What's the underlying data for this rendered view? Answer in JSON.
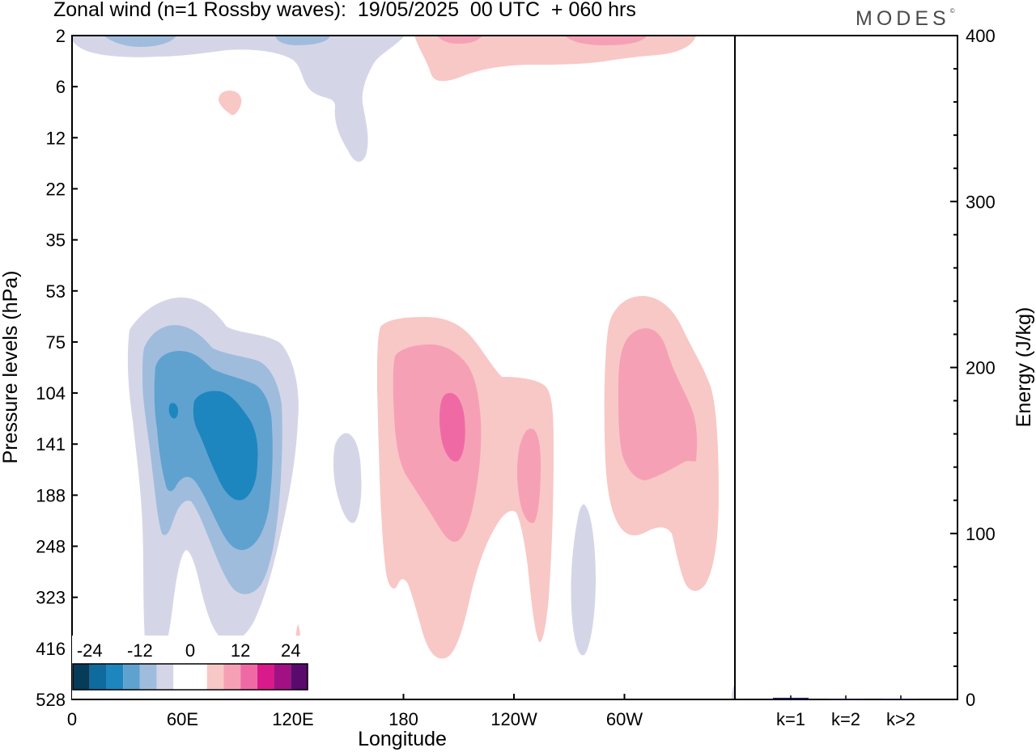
{
  "title": "Zonal wind (n=1 Rossby waves):  19/05/2025  00 UTC  + 060 hrs",
  "brand": "MODES",
  "brand_mark": "©",
  "chart_data": [
    {
      "type": "contour",
      "xlabel": "Longitude",
      "ylabel": "Pressure levels (hPa)",
      "x_ticks": [
        "0",
        "60E",
        "120E",
        "180",
        "120W",
        "60W"
      ],
      "y_ticks": [
        "2",
        "6",
        "12",
        "22",
        "35",
        "53",
        "75",
        "104",
        "141",
        "188",
        "248",
        "323",
        "416",
        "528"
      ],
      "colorbar": {
        "labels": [
          "-24",
          "-12",
          "0",
          "12",
          "24"
        ],
        "colors": [
          "#073b5a",
          "#0f6a9e",
          "#1e86be",
          "#5fa2cf",
          "#a0bcdd",
          "#d4d6e8",
          "#ffffff",
          "#ffffff",
          "#f8c8c6",
          "#f6a0b6",
          "#ef6aa4",
          "#d91a8a",
          "#a11184",
          "#5a0a6d"
        ]
      },
      "levels": [
        -24,
        -20,
        -16,
        -12,
        -8,
        -4,
        0,
        4,
        8,
        12,
        16,
        20,
        24
      ],
      "shading_colors": {
        "neg_4": "#d4d6e8",
        "neg_8": "#a0bcdd",
        "neg_12": "#5fa2cf",
        "neg_16": "#1e86be",
        "pos_4": "#f8c8c6",
        "pos_8": "#f6a0b6",
        "pos_12": "#ef6aa4"
      }
    },
    {
      "type": "bar",
      "categories": [
        "k=1",
        "k=2",
        "k>2"
      ],
      "values": [
        1.0,
        0.3,
        0.5
      ],
      "ylabel": "Energy (J/kg)",
      "ylim": [
        0,
        400
      ],
      "y_ticks": [
        "0",
        "100",
        "200",
        "300",
        "400"
      ],
      "bar_color": "#1a1a4a"
    }
  ]
}
